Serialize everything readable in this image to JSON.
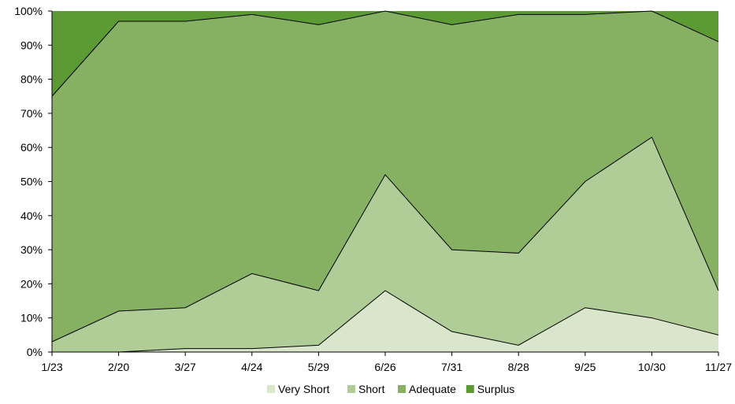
{
  "chart_data": {
    "type": "area",
    "stacked": true,
    "percent": true,
    "x": [
      "1/23",
      "2/20",
      "3/27",
      "4/24",
      "5/29",
      "6/26",
      "7/31",
      "8/28",
      "9/25",
      "10/30",
      "11/27"
    ],
    "series": [
      {
        "name": "Very Short",
        "color": "#d9e6cb",
        "values": [
          0,
          0,
          1,
          1,
          2,
          18,
          6,
          2,
          13,
          10,
          5
        ]
      },
      {
        "name": "Short",
        "color": "#b0cc97",
        "values": [
          3,
          12,
          12,
          22,
          16,
          34,
          24,
          27,
          37,
          53,
          13
        ]
      },
      {
        "name": "Adequate",
        "color": "#86b062",
        "values": [
          72,
          85,
          84,
          76,
          78,
          48,
          66,
          70,
          49,
          37,
          73
        ]
      },
      {
        "name": "Surplus",
        "color": "#5c9a34",
        "values": [
          25,
          3,
          3,
          1,
          4,
          0,
          4,
          1,
          1,
          0,
          9
        ]
      }
    ],
    "ylim": [
      0,
      100
    ],
    "yticks": [
      "0%",
      "10%",
      "20%",
      "30%",
      "40%",
      "50%",
      "60%",
      "70%",
      "80%",
      "90%",
      "100%"
    ],
    "legend": "bottom",
    "grid": false
  }
}
